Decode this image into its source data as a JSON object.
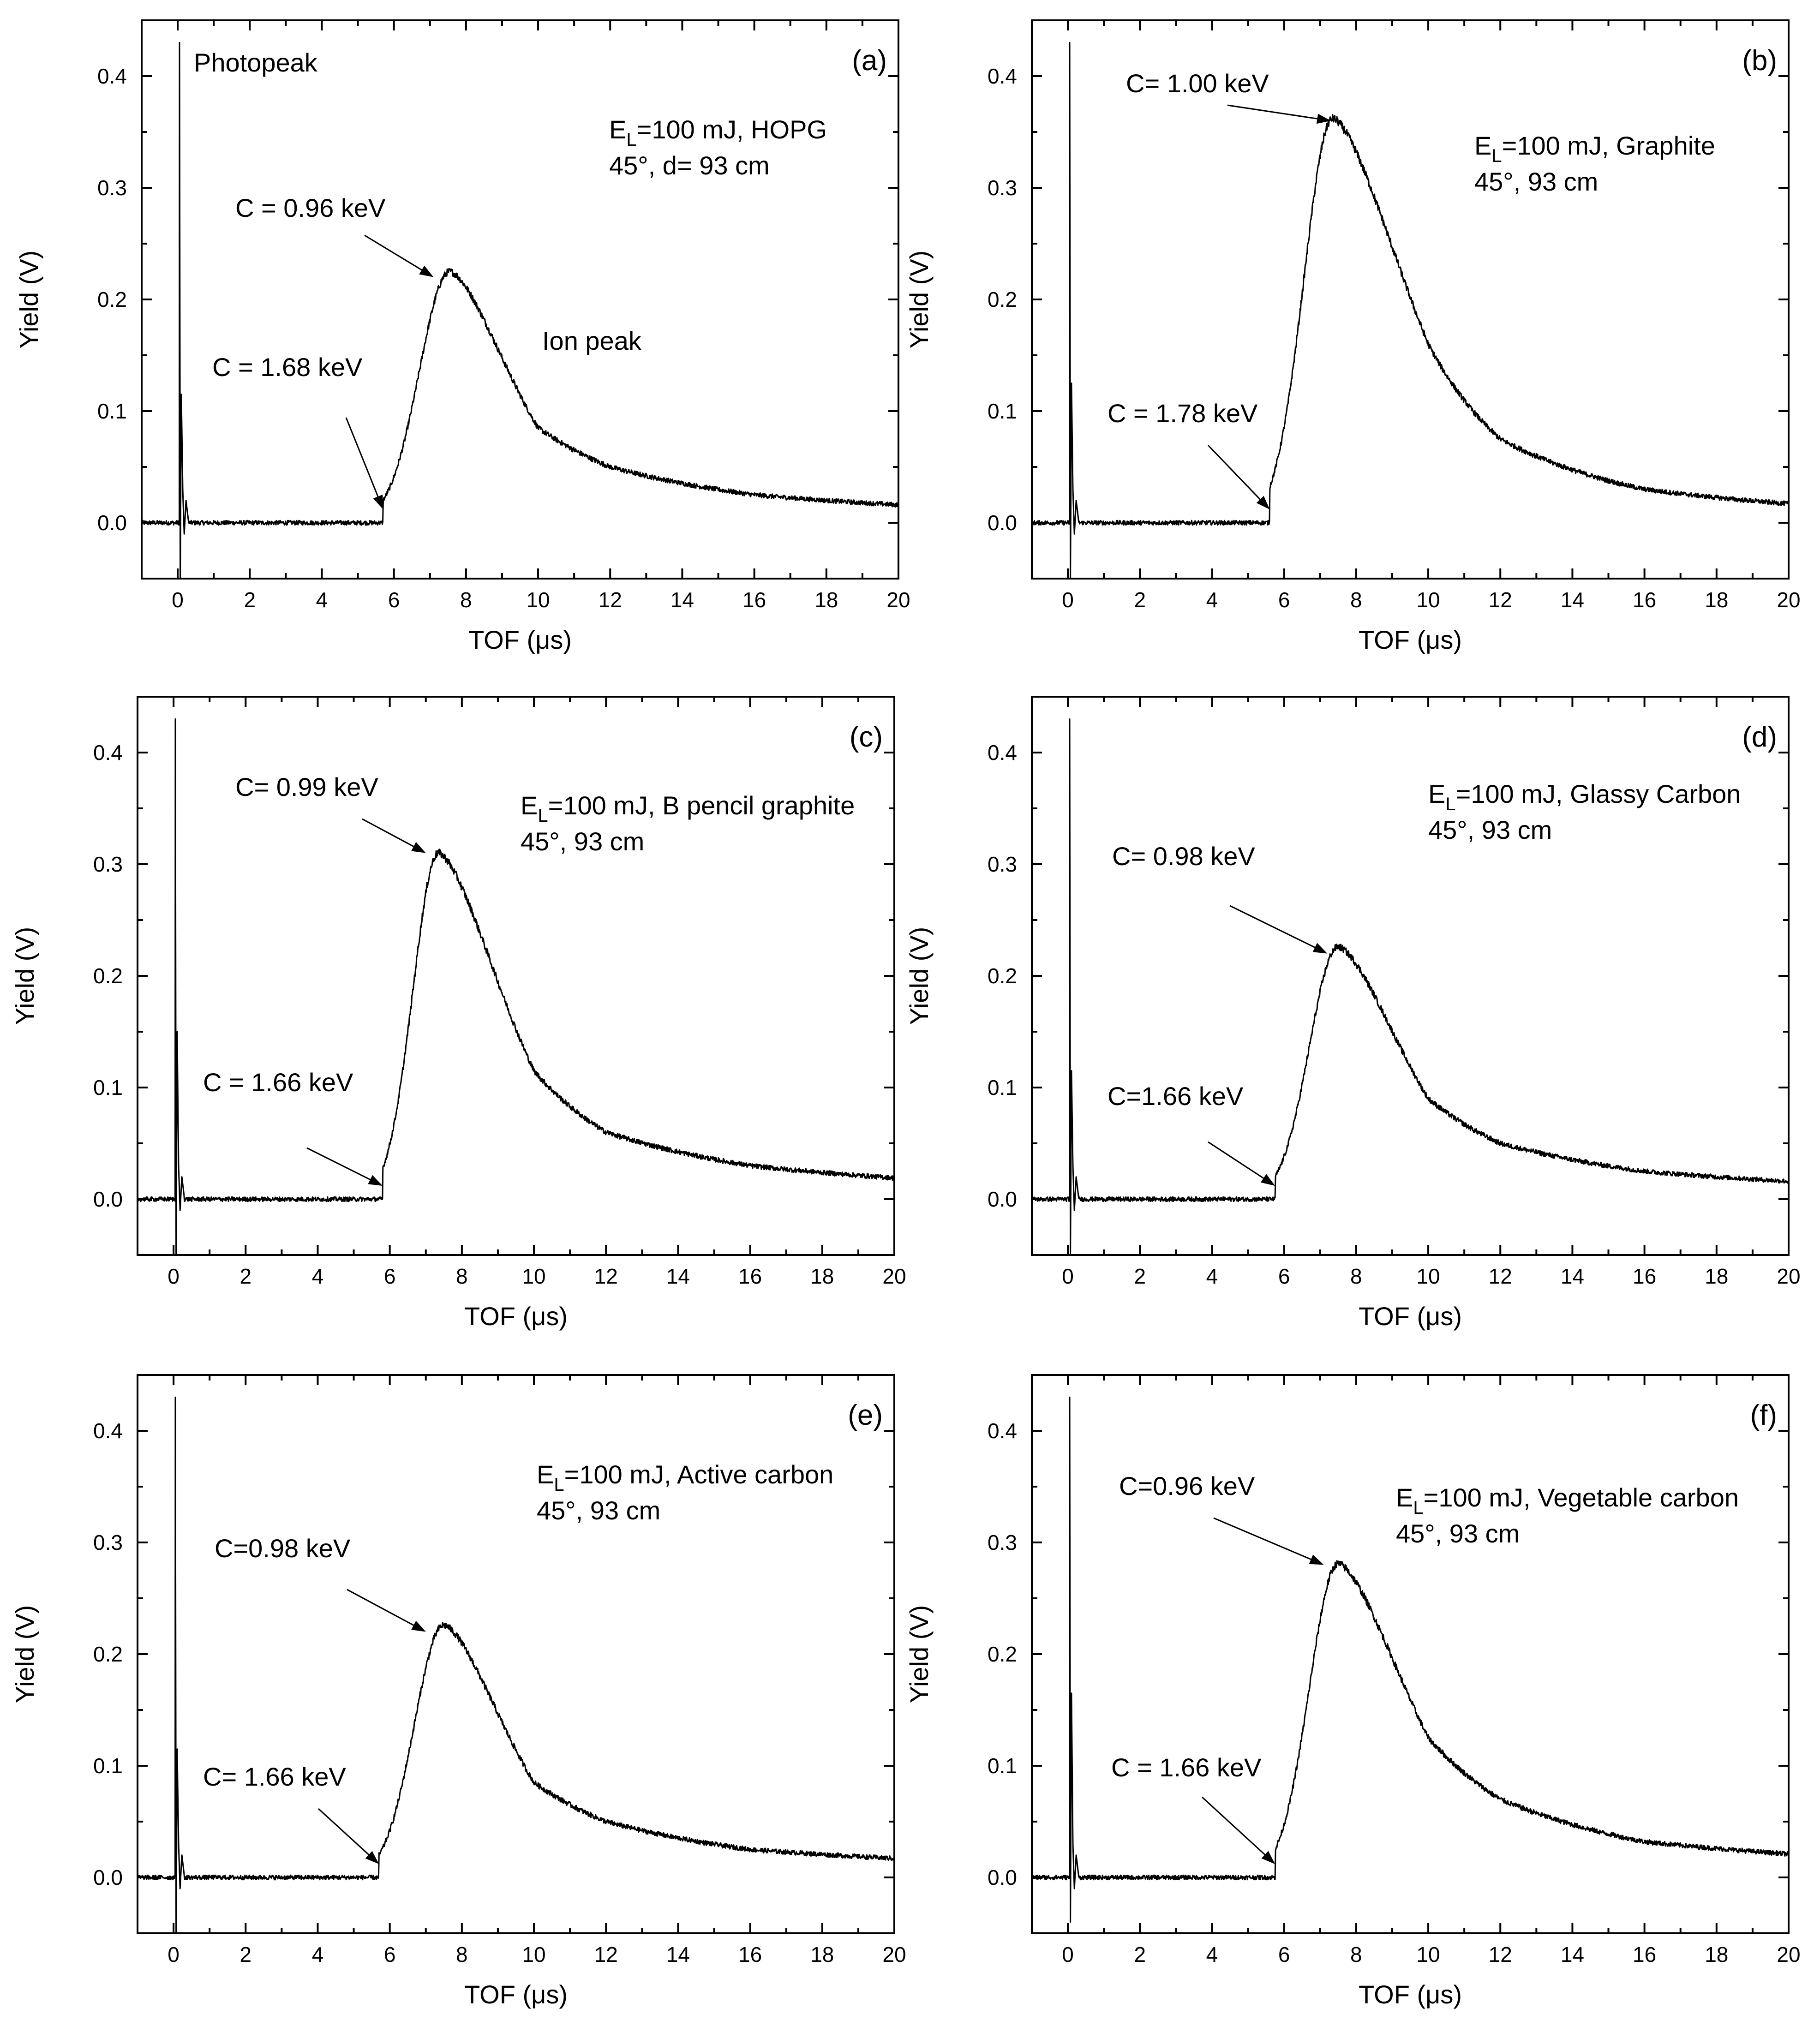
{
  "figure": {
    "x_axis_label": "TOF (μs)",
    "y_axis_label": "Yield (V)"
  },
  "chart_data": [
    {
      "id": "a",
      "type": "line",
      "panel_label": "(a)",
      "xlabel": "TOF (μs)",
      "ylabel": "Yield (V)",
      "xlim": [
        -1,
        20
      ],
      "ylim": [
        -0.05,
        0.45
      ],
      "xticks": [
        0,
        2,
        4,
        6,
        8,
        10,
        12,
        14,
        16,
        18,
        20
      ],
      "yticks": [
        0.0,
        0.1,
        0.2,
        0.3,
        0.4
      ],
      "photopeak": {
        "t": 0.05,
        "height": 0.43,
        "ringing": [
          0.115,
          -0.05
        ]
      },
      "ion_peak": {
        "onset": 5.7,
        "peak_t": 7.55,
        "peak_y": 0.225,
        "rise": 0.65,
        "tail": [
          {
            "t": 10,
            "y": 0.085
          },
          {
            "t": 12,
            "y": 0.05
          },
          {
            "t": 16,
            "y": 0.025
          },
          {
            "t": 20,
            "y": 0.016
          }
        ]
      },
      "condition_lines": [
        {
          "main": "E",
          "sub": "L",
          "rest": "=100 mJ, HOPG"
        },
        {
          "main": "45°, d= 93 cm",
          "sub": "",
          "rest": ""
        }
      ],
      "annotations": [
        {
          "label": "Photopeak",
          "arrow": false
        },
        {
          "label": "Ion peak",
          "arrow": false
        },
        {
          "label": "C = 0.96 keV",
          "arrow": true,
          "target_t": 7.1,
          "target_y": 0.22
        },
        {
          "label": "C = 1.68 keV",
          "arrow": true,
          "target_t": 5.7,
          "target_y": 0.012
        }
      ]
    },
    {
      "id": "b",
      "type": "line",
      "panel_label": "(b)",
      "xlabel": "TOF (μs)",
      "ylabel": "Yield (V)",
      "xlim": [
        -1,
        20
      ],
      "ylim": [
        -0.05,
        0.45
      ],
      "xticks": [
        0,
        2,
        4,
        6,
        8,
        10,
        12,
        14,
        16,
        18,
        20
      ],
      "yticks": [
        0.0,
        0.1,
        0.2,
        0.3,
        0.4
      ],
      "photopeak": {
        "t": 0.05,
        "height": 0.43,
        "ringing": [
          0.125,
          -0.05
        ]
      },
      "ion_peak": {
        "onset": 5.6,
        "peak_t": 7.35,
        "peak_y": 0.362,
        "rise": 0.55,
        "tail": [
          {
            "t": 10,
            "y": 0.16
          },
          {
            "t": 12,
            "y": 0.075
          },
          {
            "t": 16,
            "y": 0.03
          },
          {
            "t": 20,
            "y": 0.017
          }
        ]
      },
      "condition_lines": [
        {
          "main": "E",
          "sub": "L",
          "rest": "=100 mJ, Graphite"
        },
        {
          "main": "45°, 93 cm",
          "sub": "",
          "rest": ""
        }
      ],
      "annotations": [
        {
          "label": "C= 1.00 keV",
          "arrow": true,
          "target_t": 7.3,
          "target_y": 0.36
        },
        {
          "label": "C = 1.78 keV",
          "arrow": true,
          "target_t": 5.6,
          "target_y": 0.012
        }
      ]
    },
    {
      "id": "c",
      "type": "line",
      "panel_label": "(c)",
      "xlabel": "TOF (μs)",
      "ylabel": "Yield (V)",
      "xlim": [
        -1,
        20
      ],
      "ylim": [
        -0.05,
        0.45
      ],
      "xticks": [
        0,
        2,
        4,
        6,
        8,
        10,
        12,
        14,
        16,
        18,
        20
      ],
      "yticks": [
        0.0,
        0.1,
        0.2,
        0.3,
        0.4
      ],
      "photopeak": {
        "t": 0.05,
        "height": 0.43,
        "ringing": [
          0.15,
          -0.05
        ]
      },
      "ion_peak": {
        "onset": 5.8,
        "peak_t": 7.35,
        "peak_y": 0.31,
        "rise": 0.5,
        "tail": [
          {
            "t": 10,
            "y": 0.115
          },
          {
            "t": 12,
            "y": 0.06
          },
          {
            "t": 16,
            "y": 0.03
          },
          {
            "t": 20,
            "y": 0.019
          }
        ]
      },
      "condition_lines": [
        {
          "main": "E",
          "sub": "L",
          "rest": "=100 mJ, B pencil graphite"
        },
        {
          "main": "45°, 93 cm",
          "sub": "",
          "rest": ""
        }
      ],
      "annotations": [
        {
          "label": "C= 0.99 keV",
          "arrow": true,
          "target_t": 7.0,
          "target_y": 0.31
        },
        {
          "label": "C = 1.66 keV",
          "arrow": true,
          "target_t": 5.8,
          "target_y": 0.012
        }
      ]
    },
    {
      "id": "d",
      "type": "line",
      "panel_label": "(d)",
      "xlabel": "TOF (μs)",
      "ylabel": "Yield (V)",
      "xlim": [
        -1,
        20
      ],
      "ylim": [
        -0.05,
        0.45
      ],
      "xticks": [
        0,
        2,
        4,
        6,
        8,
        10,
        12,
        14,
        16,
        18,
        20
      ],
      "yticks": [
        0.0,
        0.1,
        0.2,
        0.3,
        0.4
      ],
      "photopeak": {
        "t": 0.05,
        "height": 0.43,
        "ringing": [
          0.115,
          -0.05
        ]
      },
      "ion_peak": {
        "onset": 5.75,
        "peak_t": 7.5,
        "peak_y": 0.226,
        "rise": 0.6,
        "tail": [
          {
            "t": 10,
            "y": 0.09
          },
          {
            "t": 12,
            "y": 0.05
          },
          {
            "t": 16,
            "y": 0.025
          },
          {
            "t": 20,
            "y": 0.016
          }
        ]
      },
      "condition_lines": [
        {
          "main": "E",
          "sub": "L",
          "rest": "=100 mJ, Glassy Carbon"
        },
        {
          "main": "45°, 93 cm",
          "sub": "",
          "rest": ""
        }
      ],
      "annotations": [
        {
          "label": "C= 0.98 keV",
          "arrow": true,
          "target_t": 7.2,
          "target_y": 0.22
        },
        {
          "label": "C=1.66 keV",
          "arrow": true,
          "target_t": 5.75,
          "target_y": 0.012
        }
      ]
    },
    {
      "id": "e",
      "type": "line",
      "panel_label": "(e)",
      "xlabel": "TOF (μs)",
      "ylabel": "Yield (V)",
      "xlim": [
        -1,
        20
      ],
      "ylim": [
        -0.05,
        0.45
      ],
      "xticks": [
        0,
        2,
        4,
        6,
        8,
        10,
        12,
        14,
        16,
        18,
        20
      ],
      "yticks": [
        0.0,
        0.1,
        0.2,
        0.3,
        0.4
      ],
      "photopeak": {
        "t": 0.05,
        "height": 0.43,
        "ringing": [
          0.115,
          -0.05
        ]
      },
      "ion_peak": {
        "onset": 5.7,
        "peak_t": 7.5,
        "peak_y": 0.226,
        "rise": 0.6,
        "tail": [
          {
            "t": 10,
            "y": 0.085
          },
          {
            "t": 12,
            "y": 0.05
          },
          {
            "t": 16,
            "y": 0.025
          },
          {
            "t": 20,
            "y": 0.017
          }
        ]
      },
      "condition_lines": [
        {
          "main": "E",
          "sub": "L",
          "rest": "=100 mJ, Active carbon"
        },
        {
          "main": "45°, 93 cm",
          "sub": "",
          "rest": ""
        }
      ],
      "annotations": [
        {
          "label": "C=0.98 keV",
          "arrow": true,
          "target_t": 7.0,
          "target_y": 0.22
        },
        {
          "label": "C= 1.66 keV",
          "arrow": true,
          "target_t": 5.7,
          "target_y": 0.012
        }
      ]
    },
    {
      "id": "f",
      "type": "line",
      "panel_label": "(f)",
      "xlabel": "TOF (μs)",
      "ylabel": "Yield (V)",
      "xlim": [
        -1,
        20
      ],
      "ylim": [
        -0.05,
        0.45
      ],
      "xticks": [
        0,
        2,
        4,
        6,
        8,
        10,
        12,
        14,
        16,
        18,
        20
      ],
      "yticks": [
        0.0,
        0.1,
        0.2,
        0.3,
        0.4
      ],
      "photopeak": {
        "t": 0.05,
        "height": 0.43,
        "ringing": [
          0.165,
          -0.04
        ]
      },
      "ion_peak": {
        "onset": 5.75,
        "peak_t": 7.5,
        "peak_y": 0.281,
        "rise": 0.55,
        "tail": [
          {
            "t": 10,
            "y": 0.125
          },
          {
            "t": 12,
            "y": 0.07
          },
          {
            "t": 16,
            "y": 0.032
          },
          {
            "t": 20,
            "y": 0.021
          }
        ]
      },
      "condition_lines": [
        {
          "main": "E",
          "sub": "L",
          "rest": "=100 mJ, Vegetable carbon"
        },
        {
          "main": "45°, 93 cm",
          "sub": "",
          "rest": ""
        }
      ],
      "annotations": [
        {
          "label": "C=0.96 keV",
          "arrow": true,
          "target_t": 7.1,
          "target_y": 0.28
        },
        {
          "label": "C = 1.66 keV",
          "arrow": true,
          "target_t": 5.75,
          "target_y": 0.012
        }
      ]
    }
  ]
}
